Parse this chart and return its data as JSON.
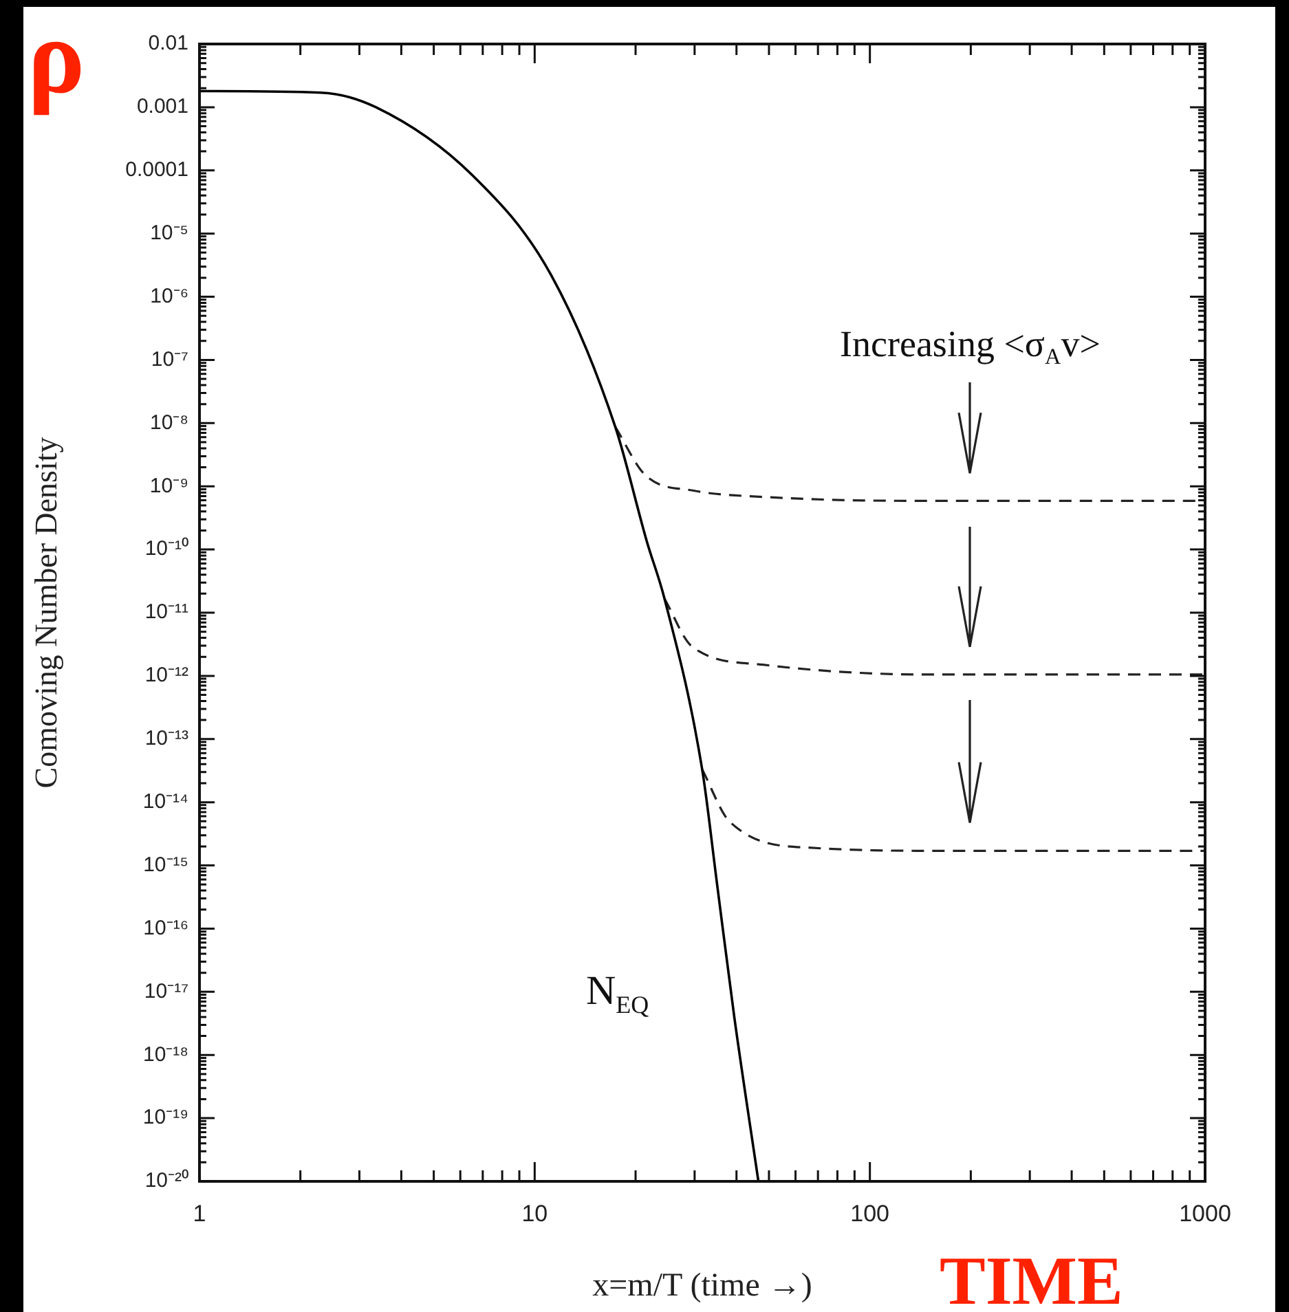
{
  "chart_data": {
    "type": "line",
    "xlabel": "x=m/T (time →)",
    "ylabel": "Comoving Number Density",
    "log": "xy",
    "xlim": [
      1,
      1000
    ],
    "ylim": [
      1e-20,
      0.01
    ],
    "xticks": [
      1,
      10,
      100,
      1000
    ],
    "yticks": [
      0.01,
      0.001,
      0.0001,
      {
        "value": 1e-05,
        "label": "10⁻⁵"
      },
      {
        "value": 1e-06,
        "label": "10⁻⁶"
      },
      {
        "value": 1e-07,
        "label": "10⁻⁷"
      },
      {
        "value": 1e-08,
        "label": "10⁻⁸"
      },
      {
        "value": 1e-09,
        "label": "10⁻⁹"
      },
      {
        "value": 1e-10,
        "label": "10⁻¹⁰"
      },
      {
        "value": 1e-11,
        "label": "10⁻¹¹"
      },
      {
        "value": 1e-12,
        "label": "10⁻¹²"
      },
      {
        "value": 1e-13,
        "label": "10⁻¹³"
      },
      {
        "value": 1e-14,
        "label": "10⁻¹⁴"
      },
      {
        "value": 1e-15,
        "label": "10⁻¹⁵"
      },
      {
        "value": 1e-16,
        "label": "10⁻¹⁶"
      },
      {
        "value": 1e-17,
        "label": "10⁻¹⁷"
      },
      {
        "value": 1e-18,
        "label": "10⁻¹⁸"
      },
      {
        "value": 1e-19,
        "label": "10⁻¹⁹"
      },
      {
        "value": 1e-20,
        "label": "10⁻²⁰"
      }
    ],
    "grid": false,
    "legend": false,
    "marker": "none",
    "series": [
      {
        "color": "#000000",
        "line_style": "solid",
        "x": [
          1,
          2.3,
          3.36,
          6.5,
          11.2,
          17.4,
          21.6,
          24.4,
          31.6,
          35,
          39.4,
          46.5
        ],
        "values": [
          0.0018,
          0.0017,
          0.001,
          8.5e-05,
          2.2e-06,
          8.7e-09,
          1.35e-10,
          1.66e-11,
          3.3e-14,
          5.1e-16,
          4e-18,
          1e-20
        ]
      },
      {
        "color": "#222222",
        "line_style": "dashed",
        "x": [
          17.4,
          21.4,
          30,
          48,
          128,
          1000
        ],
        "values": [
          8.7e-09,
          1.5e-09,
          8.5e-10,
          6.8e-10,
          5.9e-10,
          5.9e-10
        ]
      },
      {
        "color": "#222222",
        "line_style": "dashed",
        "x": [
          24.4,
          29.5,
          48,
          150,
          1000
        ],
        "values": [
          1.66e-11,
          2.9e-12,
          1.5e-12,
          1.05e-12,
          1.05e-12
        ]
      },
      {
        "color": "#222222",
        "line_style": "dashed",
        "x": [
          31.6,
          38.2,
          67,
          178,
          1000
        ],
        "values": [
          3.3e-14,
          4.9e-15,
          1.9e-15,
          1.7e-15,
          1.7e-15
        ]
      }
    ],
    "annotations": [
      "Increasing <σ$_{A}$v>",
      "N$_{EQ}$",
      "ρ",
      "TIME"
    ]
  }
}
